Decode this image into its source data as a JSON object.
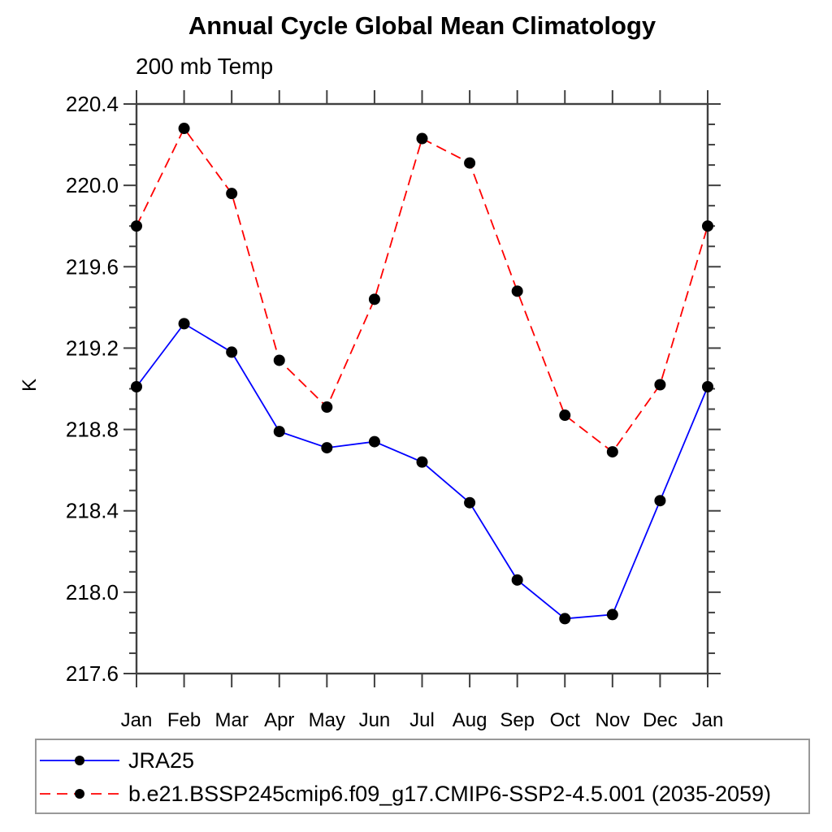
{
  "chart": {
    "title": "Annual Cycle Global Mean Climatology",
    "left_subtitle": "200 mb Temp",
    "y_axis_unit": "K"
  },
  "chart_data": {
    "type": "line",
    "title": "Annual Cycle Global Mean Climatology",
    "subtitle": "200 mb Temp",
    "xlabel": "",
    "ylabel": "K",
    "categories": [
      "Jan",
      "Feb",
      "Mar",
      "Apr",
      "May",
      "Jun",
      "Jul",
      "Aug",
      "Sep",
      "Oct",
      "Nov",
      "Dec",
      "Jan"
    ],
    "series": [
      {
        "name": "JRA25",
        "color": "#0000ff",
        "line_style": "solid",
        "marker": "filled-circle",
        "values": [
          219.01,
          219.32,
          219.18,
          218.79,
          218.71,
          218.74,
          218.64,
          218.44,
          218.06,
          217.87,
          217.89,
          218.45,
          219.01
        ]
      },
      {
        "name": "b.e21.BSSP245cmip6.f09_g17.CMIP6-SSP2-4.5.001 (2035-2059)",
        "color": "#ff0000",
        "line_style": "dashed",
        "marker": "filled-circle",
        "values": [
          219.8,
          220.28,
          219.96,
          219.14,
          218.91,
          219.44,
          220.23,
          220.11,
          219.48,
          218.87,
          218.69,
          219.02,
          219.8
        ]
      }
    ],
    "ylim": [
      217.6,
      220.4
    ],
    "yticks": [
      217.6,
      218.0,
      218.4,
      218.8,
      219.2,
      219.6,
      220.0,
      220.4
    ],
    "ytick_minor_step": 0.1,
    "grid": false,
    "legend_position": "bottom-left-box",
    "marker_color": "#000000"
  },
  "colors": {
    "background": "#ffffff",
    "axis": "#404040",
    "legend_border": "#999999",
    "text": "#000000"
  }
}
